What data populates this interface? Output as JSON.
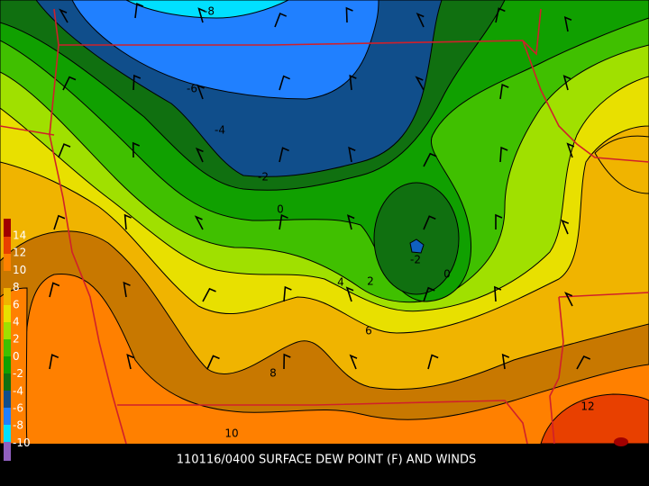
{
  "caption": "110116/0400 SURFACE DEW POINT (F) AND WINDS",
  "legend": [
    14,
    12,
    10,
    8,
    6,
    4,
    2,
    0,
    -2,
    -4,
    -6,
    -8,
    -10
  ],
  "contour_labels": [
    -8,
    -6,
    -4,
    -2,
    0,
    4,
    2,
    -2,
    0,
    6,
    8,
    10,
    12
  ]
}
